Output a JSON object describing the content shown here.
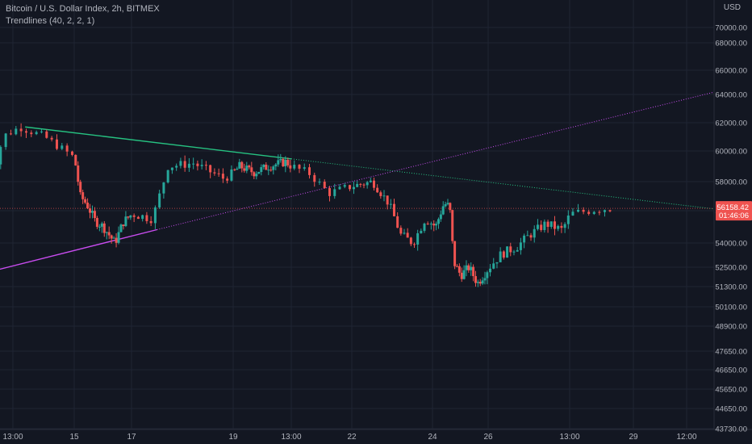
{
  "legend": {
    "symbol": "Bitcoin / U.S. Dollar Index, 2h, BITMEX",
    "indicator": "Trendlines (40, 2, 2, 1)"
  },
  "chart_data": {
    "type": "candlestick",
    "currency": "USD",
    "y_ticks": [
      70000,
      68000,
      66000,
      64000,
      62000,
      60000,
      58000,
      56000,
      54000,
      52500,
      51300,
      50100,
      48900,
      47650,
      46650,
      45650,
      44650,
      43730
    ],
    "y_tick_labels": [
      "70000.00",
      "68000.00",
      "66000.00",
      "64000.00",
      "62000.00",
      "60000.00",
      "58000.00",
      "56000.00",
      "54000.00",
      "52500.00",
      "51300.00",
      "50100.00",
      "48900.00",
      "47650.00",
      "46650.00",
      "45650.00",
      "44650.00",
      "43730.00"
    ],
    "x_tick_labels": [
      "13:00",
      "15",
      "17",
      "19",
      "13:00",
      "22",
      "24",
      "26",
      "13:00",
      "29",
      "12:00"
    ],
    "x_tick_days": [
      14.0,
      15.0,
      17.0,
      19.0,
      21.0,
      22.0,
      24.0,
      26.0,
      28.0,
      29.0,
      30.5
    ],
    "last_price": "56158.42",
    "countdown": "01:46:06",
    "colors": {
      "up": "#26a69a",
      "down": "#ef5350",
      "resistance": "#26c281",
      "support": "#c94cf0",
      "last": "#ef5350"
    },
    "resistance_line": {
      "start": [
        14.2,
        61700
      ],
      "end": [
        31.7,
        56000
      ]
    },
    "support_line": {
      "start": [
        13.5,
        52100
      ],
      "end": [
        31.7,
        64500
      ]
    },
    "anchor_points": [
      {
        "day": 13.55,
        "price": 54500
      },
      {
        "day": 13.75,
        "price": 58800
      },
      {
        "day": 13.95,
        "price": 61100
      },
      {
        "day": 14.2,
        "price": 61700
      },
      {
        "day": 14.6,
        "price": 61000
      },
      {
        "day": 15.1,
        "price": 59500
      },
      {
        "day": 15.3,
        "price": 57000
      },
      {
        "day": 15.5,
        "price": 56500
      },
      {
        "day": 15.8,
        "price": 55400
      },
      {
        "day": 16.1,
        "price": 55000
      },
      {
        "day": 16.5,
        "price": 54000
      },
      {
        "day": 16.8,
        "price": 55300
      },
      {
        "day": 17.1,
        "price": 55800
      },
      {
        "day": 17.5,
        "price": 55500
      },
      {
        "day": 17.8,
        "price": 59000
      },
      {
        "day": 18.3,
        "price": 59200
      },
      {
        "day": 18.6,
        "price": 58700
      },
      {
        "day": 18.9,
        "price": 58200
      },
      {
        "day": 19.3,
        "price": 59000
      },
      {
        "day": 19.8,
        "price": 58600
      },
      {
        "day": 20.3,
        "price": 59000
      },
      {
        "day": 20.9,
        "price": 59300
      },
      {
        "day": 21.4,
        "price": 58500
      },
      {
        "day": 21.7,
        "price": 57200
      },
      {
        "day": 22.1,
        "price": 57700
      },
      {
        "day": 22.6,
        "price": 58000
      },
      {
        "day": 23.0,
        "price": 56500
      },
      {
        "day": 23.3,
        "price": 54500
      },
      {
        "day": 23.6,
        "price": 54000
      },
      {
        "day": 23.9,
        "price": 55500
      },
      {
        "day": 24.2,
        "price": 55000
      },
      {
        "day": 24.5,
        "price": 56500
      },
      {
        "day": 24.7,
        "price": 56300
      },
      {
        "day": 24.85,
        "price": 52800
      },
      {
        "day": 25.1,
        "price": 52000
      },
      {
        "day": 25.4,
        "price": 52500
      },
      {
        "day": 25.7,
        "price": 51500
      },
      {
        "day": 26.0,
        "price": 52200
      },
      {
        "day": 26.4,
        "price": 53300
      },
      {
        "day": 26.8,
        "price": 53800
      },
      {
        "day": 27.1,
        "price": 54500
      },
      {
        "day": 27.5,
        "price": 55200
      },
      {
        "day": 27.9,
        "price": 54800
      },
      {
        "day": 28.1,
        "price": 55800
      },
      {
        "day": 28.5,
        "price": 56100
      },
      {
        "day": 28.7,
        "price": 56158
      }
    ]
  }
}
